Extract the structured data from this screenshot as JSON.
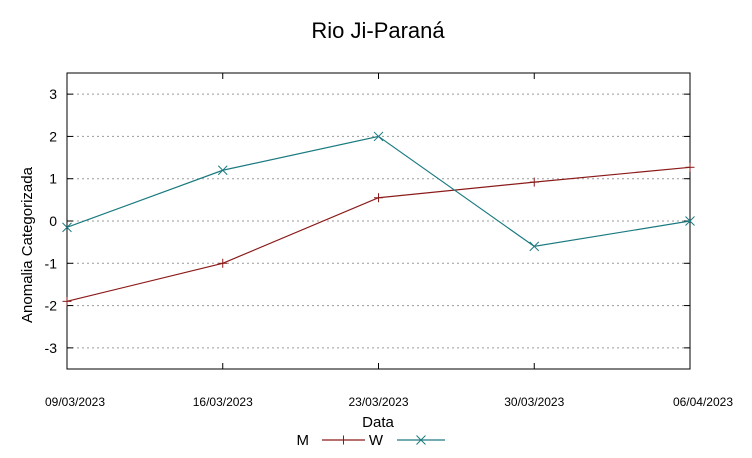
{
  "chart_data": {
    "type": "line",
    "title": "Rio Ji-Paraná",
    "xlabel": "Data",
    "ylabel": "Anomalia Categorizada",
    "categories": [
      "09/03/2023",
      "16/03/2023",
      "23/03/2023",
      "30/03/2023",
      "06/04/2023"
    ],
    "ylim": [
      -3.5,
      3.5
    ],
    "yticks": [
      -3,
      -2,
      -1,
      0,
      1,
      2,
      3
    ],
    "grid": true,
    "legend_position": "bottom",
    "series": [
      {
        "name": "M",
        "values": [
          -1.9,
          -1.0,
          0.55,
          0.92,
          1.27
        ],
        "color": "#8b1a1a",
        "marker": "plus"
      },
      {
        "name": "W",
        "values": [
          -0.15,
          1.2,
          2.0,
          -0.6,
          0.0
        ],
        "color": "#1a7a80",
        "marker": "cross"
      }
    ]
  }
}
